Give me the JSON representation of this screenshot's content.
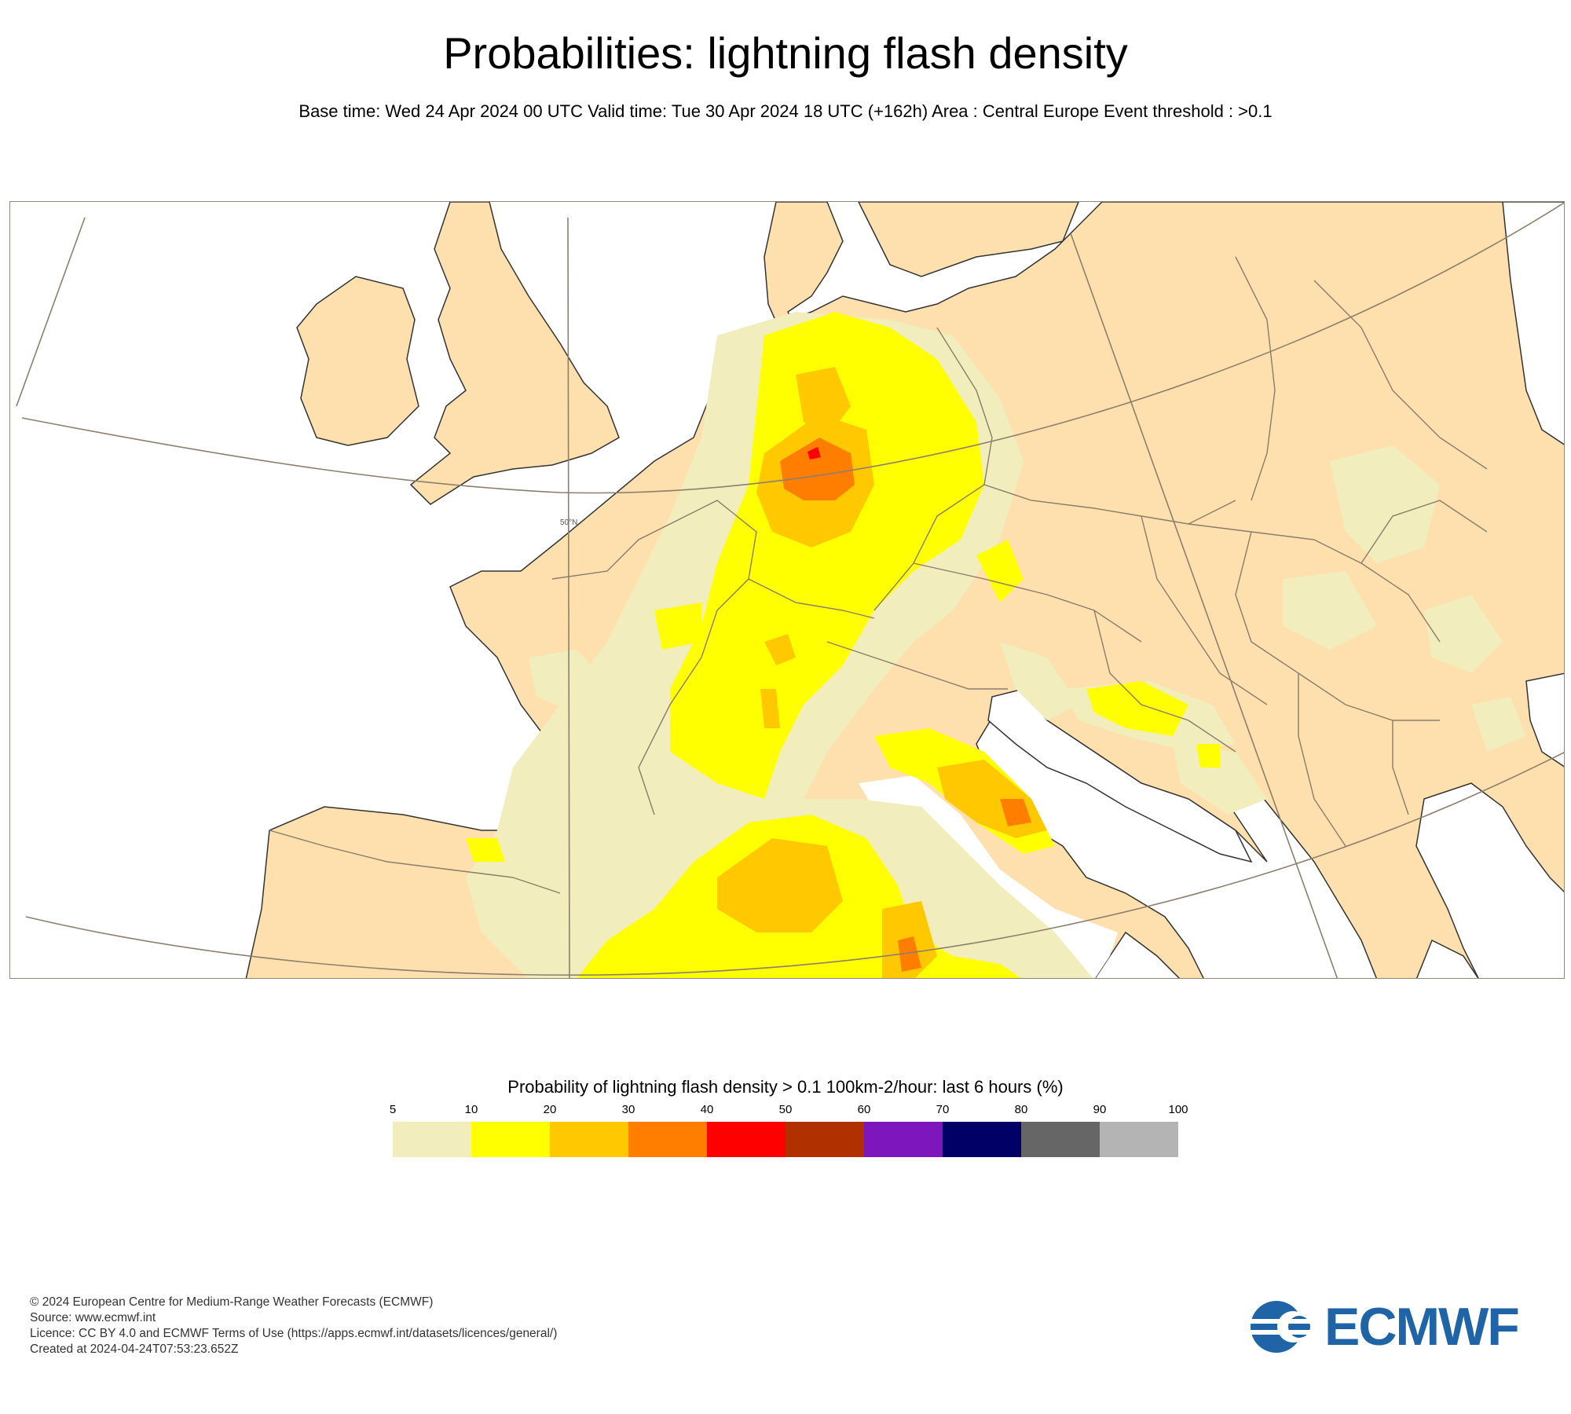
{
  "header": {
    "title": "Probabilities: lightning flash density",
    "subtitle": "Base time: Wed 24 Apr 2024 00 UTC Valid time: Tue 30 Apr 2024 18 UTC (+162h) Area : Central Europe Event threshold : >0.1"
  },
  "map": {
    "graticule_label": "50°N",
    "colors": {
      "land": "#fde0ae",
      "sea": "#ffffff",
      "coast": "#333333",
      "border": "#8a7c6a",
      "graticule": "#8d7f6b"
    }
  },
  "legend": {
    "title": "Probability of lightning flash density > 0.1 100km-2/hour: last 6 hours (%)",
    "ticks": [
      "5",
      "10",
      "20",
      "30",
      "40",
      "50",
      "60",
      "70",
      "80",
      "90",
      "100"
    ],
    "colors": [
      "#f2edbd",
      "#ffff00",
      "#ffc800",
      "#ff7e00",
      "#ff0000",
      "#b03000",
      "#7d16bd",
      "#000066",
      "#666666",
      "#b4b4b4"
    ]
  },
  "footer": {
    "lines": [
      "© 2024 European Centre for Medium-Range Weather Forecasts (ECMWF)",
      "Source: www.ecmwf.int",
      "Licence: CC BY 4.0 and ECMWF Terms of Use (https://apps.ecmwf.int/datasets/licences/general/)",
      "Created at 2024-04-24T07:53:23.652Z"
    ]
  },
  "logo": {
    "text": "ECMWF",
    "color": "#1e64a6"
  }
}
